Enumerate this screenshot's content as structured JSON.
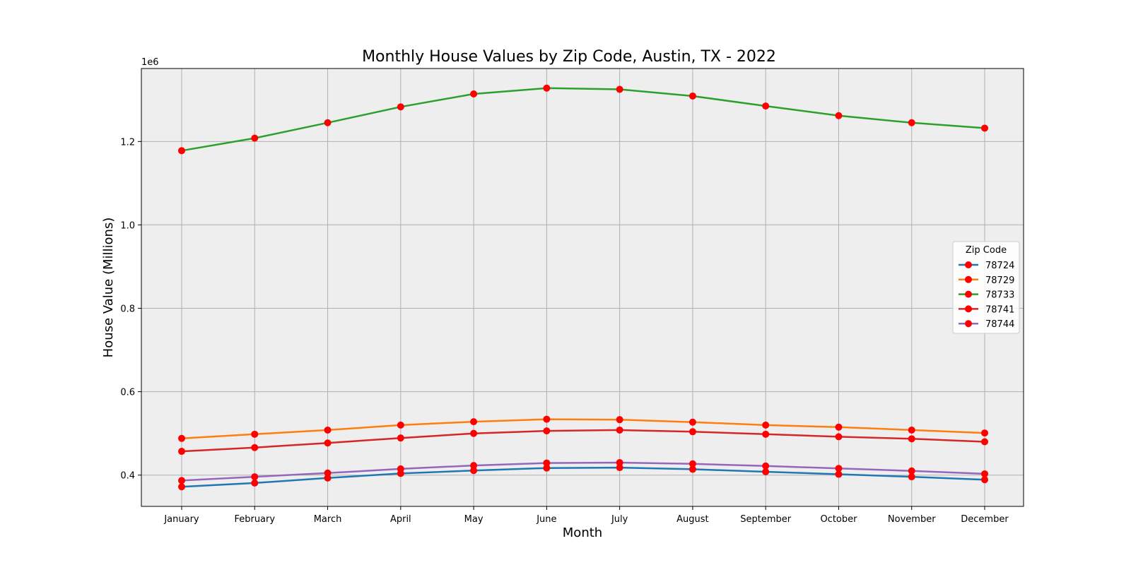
{
  "chart_data": {
    "type": "line",
    "title": "Monthly House Values by Zip Code, Austin, TX - 2022",
    "xlabel": "Month",
    "ylabel": "House Value (Millions)",
    "y_offset_label": "1e6",
    "categories": [
      "January",
      "February",
      "March",
      "April",
      "May",
      "June",
      "July",
      "August",
      "September",
      "October",
      "November",
      "December"
    ],
    "yticks": [
      "0.4",
      "0.6",
      "0.8",
      "1.0",
      "1.2"
    ],
    "ytick_values": [
      400000,
      600000,
      800000,
      1000000,
      1200000
    ],
    "ylim": [
      325000,
      1375000
    ],
    "grid": true,
    "legend": {
      "title": "Zip Code",
      "placement": "right"
    },
    "marker_color": "#ff0000",
    "series": [
      {
        "name": "78724",
        "color": "#1f77b4",
        "values": [
          372000,
          381000,
          393000,
          404000,
          411000,
          417000,
          418000,
          414000,
          408000,
          402000,
          396000,
          389000
        ]
      },
      {
        "name": "78729",
        "color": "#ff7f0e",
        "values": [
          488000,
          498000,
          508000,
          520000,
          528000,
          534000,
          533000,
          527000,
          520000,
          515000,
          508000,
          501000
        ]
      },
      {
        "name": "78733",
        "color": "#2ca02c",
        "values": [
          1178000,
          1208000,
          1245000,
          1283000,
          1314000,
          1328000,
          1325000,
          1309000,
          1285000,
          1262000,
          1245000,
          1232000
        ]
      },
      {
        "name": "78741",
        "color": "#d62728",
        "values": [
          457000,
          466000,
          477000,
          489000,
          500000,
          506000,
          508000,
          504000,
          498000,
          492000,
          487000,
          480000
        ]
      },
      {
        "name": "78744",
        "color": "#9467bd",
        "values": [
          387000,
          396000,
          405000,
          415000,
          423000,
          429000,
          430000,
          427000,
          422000,
          416000,
          410000,
          403000
        ]
      }
    ]
  }
}
